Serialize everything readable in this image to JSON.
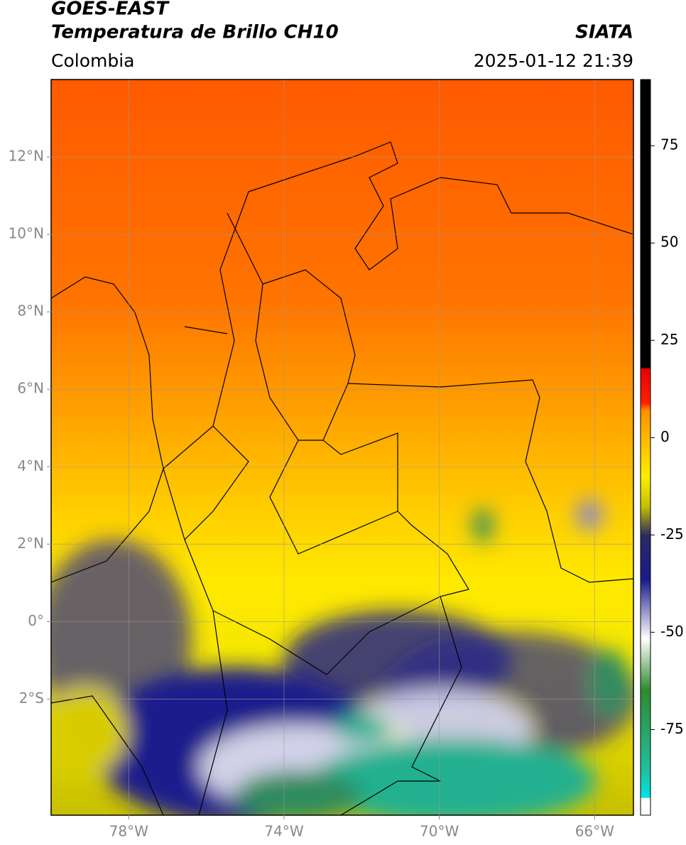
{
  "header": {
    "title": "GOES-EAST",
    "subtitle": "Temperatura de Brillo CH10",
    "source": "SIATA",
    "region": "Colombia",
    "datetime": "2025-01-12 21:39"
  },
  "map": {
    "xlim": [
      -80,
      -65
    ],
    "ylim": [
      -5,
      14
    ],
    "xticks": [
      {
        "value": -78,
        "label": "78°W"
      },
      {
        "value": -74,
        "label": "74°W"
      },
      {
        "value": -70,
        "label": "70°W"
      },
      {
        "value": -66,
        "label": "66°W"
      }
    ],
    "yticks": [
      {
        "value": 12,
        "label": "12°N"
      },
      {
        "value": 10,
        "label": "10°N"
      },
      {
        "value": 8,
        "label": "8°N"
      },
      {
        "value": 6,
        "label": "6°N"
      },
      {
        "value": 4,
        "label": "4°N"
      },
      {
        "value": 2,
        "label": "2°N"
      },
      {
        "value": 0,
        "label": "0°"
      },
      {
        "value": -2,
        "label": "2°S"
      }
    ],
    "grid": true
  },
  "colorbar": {
    "lim": [
      -97,
      92
    ],
    "ticks": [
      75,
      50,
      25,
      0,
      -25,
      -50,
      -75
    ]
  }
}
